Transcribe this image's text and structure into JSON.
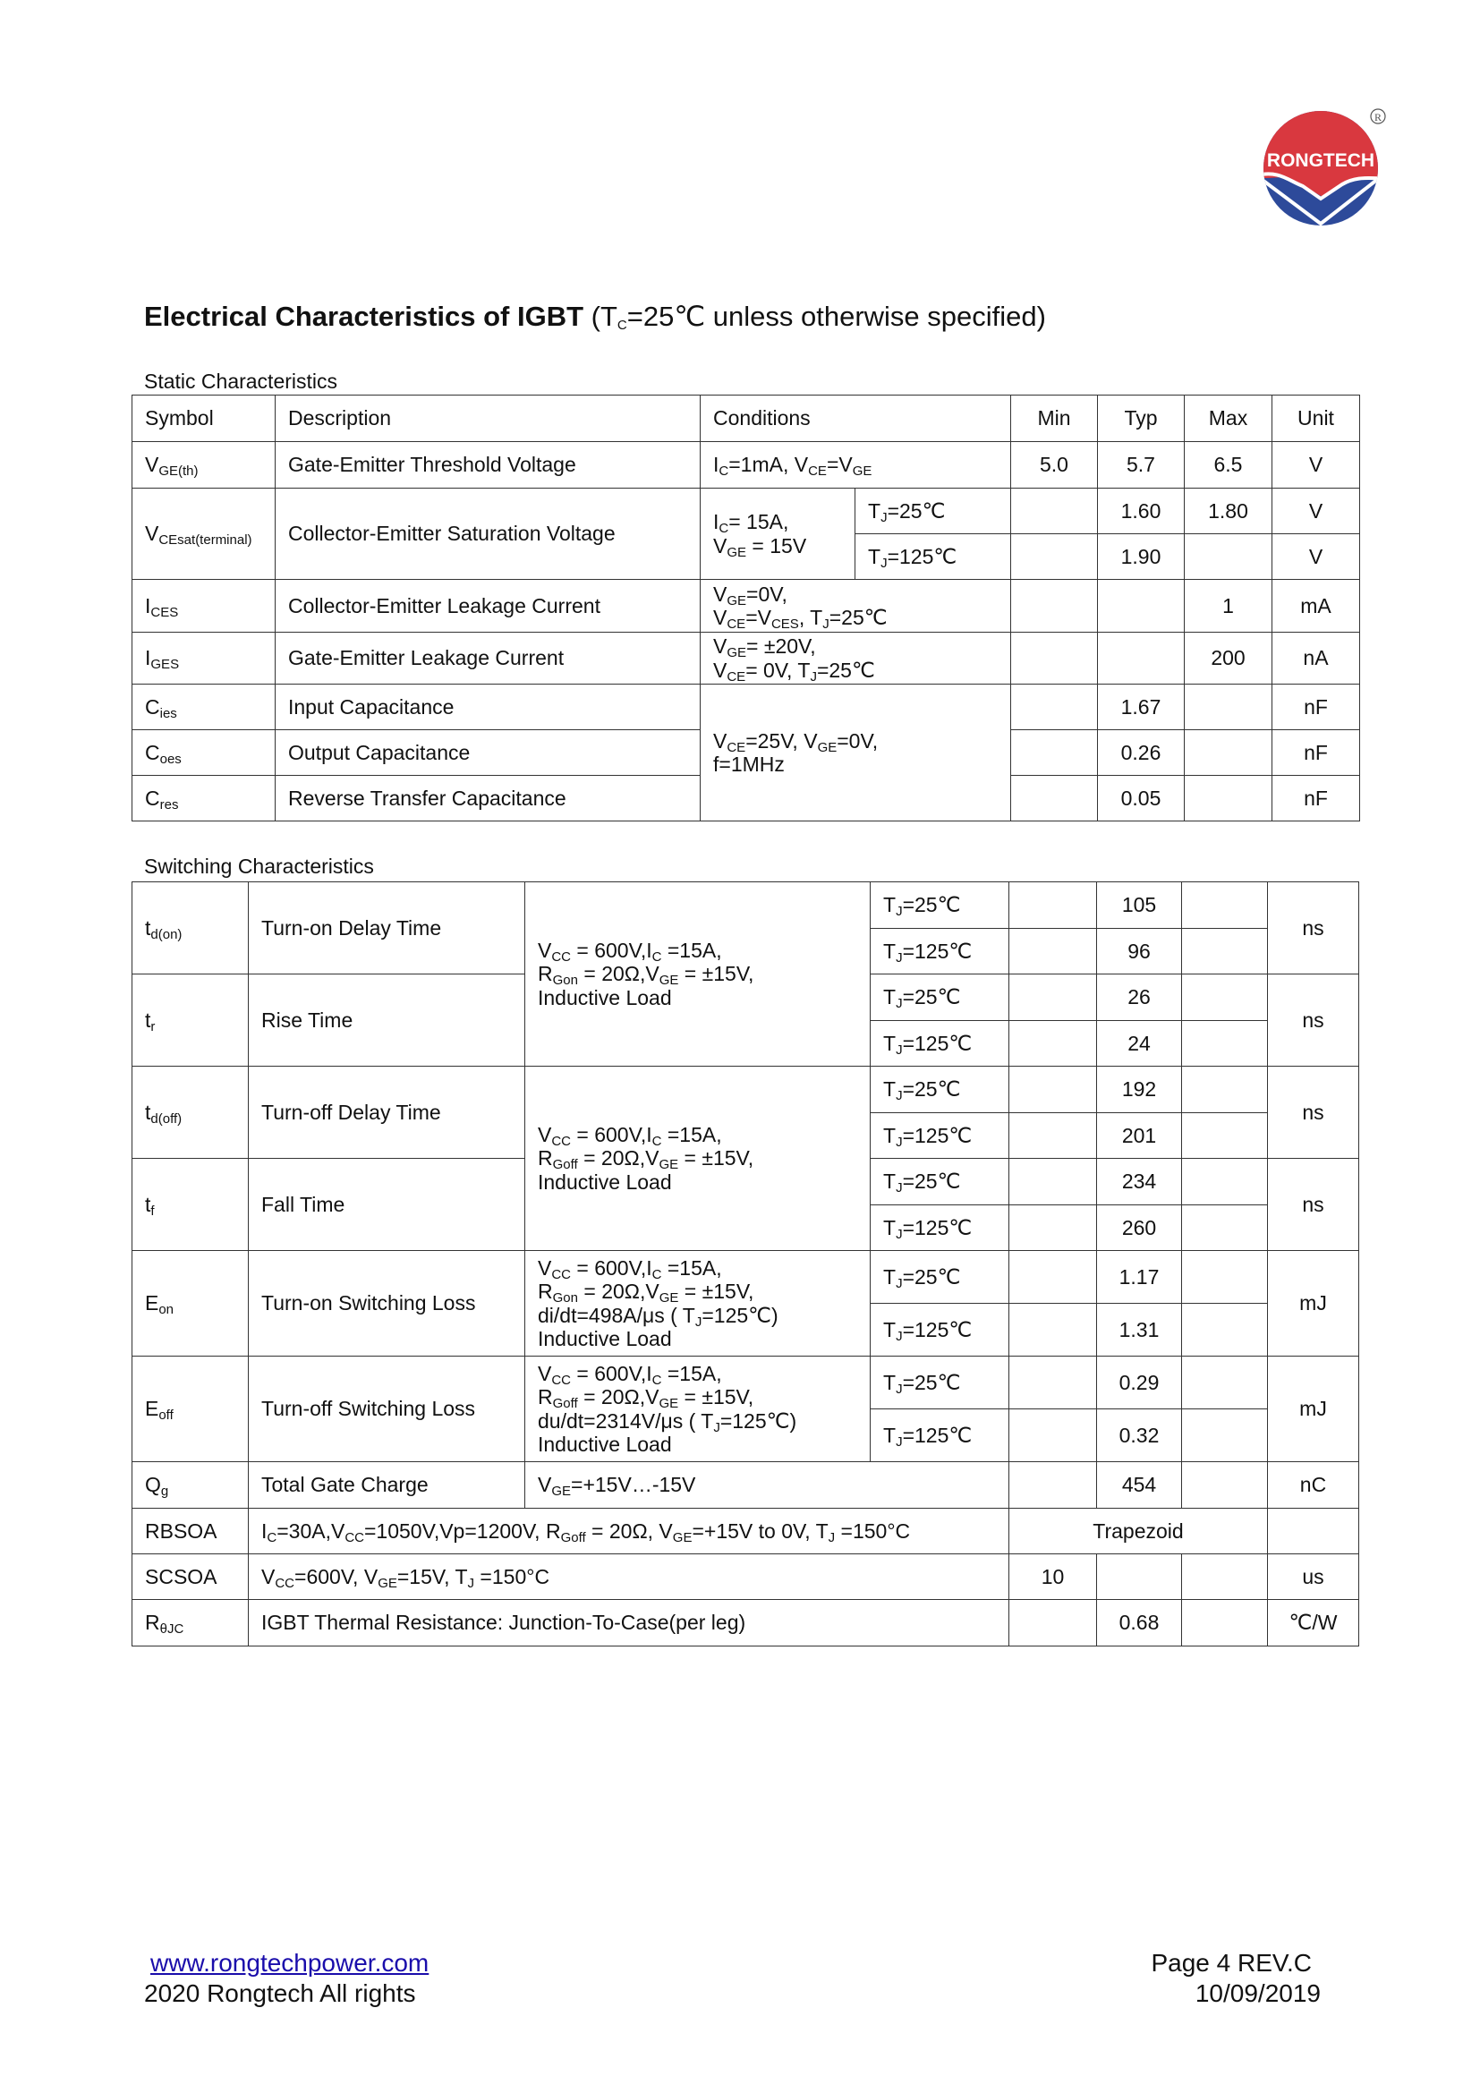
{
  "logo": {
    "text": "RONGTECH",
    "registered": "®",
    "colors": {
      "red": "#d9383f",
      "blue": "#2d4a9a"
    }
  },
  "title": {
    "bold": "Electrical Characteristics of IGBT",
    "rest": [
      [
        "(T",
        {
          "s": "C"
        },
        "=25℃  unless otherwise specified)"
      ]
    ]
  },
  "static": {
    "caption": "Static Characteristics",
    "headers": {
      "symbol": "Symbol",
      "description": "Description",
      "conditions": "Conditions",
      "min": "Min",
      "typ": "Typ",
      "max": "Max",
      "unit": "Unit"
    },
    "rows": [
      {
        "symbol": [
          [
            "V",
            {
              "s": "GE(th)"
            }
          ]
        ],
        "description": "Gate-Emitter Threshold Voltage",
        "conditions": [
          [
            "I",
            {
              "s": "C"
            },
            "=1mA, V",
            {
              "s": "CE"
            },
            "=V",
            {
              "s": "GE"
            }
          ]
        ],
        "min": "5.0",
        "typ": "5.7",
        "max": "6.5",
        "unit": "V"
      },
      {
        "symbol": [
          [
            "V",
            {
              "s": "CEsat(terminal)"
            }
          ]
        ],
        "description": "Collector-Emitter Saturation Voltage",
        "conditions": [
          [
            "I",
            {
              "s": "C"
            },
            "= 15A,"
          ],
          [
            "V",
            {
              "s": "GE"
            },
            " = 15V"
          ]
        ],
        "sub": [
          {
            "tj": [
              [
                "T",
                {
                  "s": "J"
                },
                "=25℃"
              ]
            ],
            "min": "",
            "typ": "1.60",
            "max": "1.80",
            "unit": "V"
          },
          {
            "tj": [
              [
                "T",
                {
                  "s": "J"
                },
                "=125℃"
              ]
            ],
            "min": "",
            "typ": "1.90",
            "max": "",
            "unit": "V"
          }
        ]
      },
      {
        "symbol": [
          [
            "I",
            {
              "s": "CES"
            }
          ]
        ],
        "description": "Collector-Emitter Leakage Current",
        "conditions": [
          [
            "V",
            {
              "s": "GE"
            },
            "=0V,"
          ],
          [
            "V",
            {
              "s": "CE"
            },
            "=V",
            {
              "s": "CES"
            },
            ", T",
            {
              "s": "J"
            },
            "=25℃"
          ]
        ],
        "min": "",
        "typ": "",
        "max": "1",
        "unit": "mA"
      },
      {
        "symbol": [
          [
            "I",
            {
              "s": "GES"
            }
          ]
        ],
        "description": "Gate-Emitter Leakage Current",
        "conditions": [
          [
            "V",
            {
              "s": "GE"
            },
            "= ±20V,"
          ],
          [
            "V",
            {
              "s": "CE"
            },
            "= 0V, T",
            {
              "s": "J"
            },
            "=25℃"
          ]
        ],
        "min": "",
        "typ": "",
        "max": "200",
        "unit": "nA"
      },
      {
        "symbol": [
          [
            "C",
            {
              "s": "ies"
            }
          ]
        ],
        "description": "Input Capacitance",
        "min": "",
        "typ": "1.67",
        "max": "",
        "unit": "nF"
      },
      {
        "symbol": [
          [
            "C",
            {
              "s": "oes"
            }
          ]
        ],
        "description": "Output Capacitance",
        "min": "",
        "typ": "0.26",
        "max": "",
        "unit": "nF"
      },
      {
        "symbol": [
          [
            "C",
            {
              "s": "res"
            }
          ]
        ],
        "description": "Reverse Transfer Capacitance",
        "min": "",
        "typ": "0.05",
        "max": "",
        "unit": "nF"
      }
    ],
    "cap_conditions": [
      [
        "V",
        {
          "s": "CE"
        },
        "=25V, V",
        {
          "s": "GE"
        },
        "=0V,"
      ],
      [
        "f=1MHz"
      ]
    ]
  },
  "switching": {
    "caption": "Switching Characteristics",
    "tj25": [
      [
        "T",
        {
          "s": "J"
        },
        "=25℃"
      ]
    ],
    "tj125": [
      [
        "T",
        {
          "s": "J"
        },
        "=125℃"
      ]
    ],
    "on_conditions": [
      [
        "V",
        {
          "s": "CC"
        },
        " = 600V,I",
        {
          "s": "C"
        },
        " =15A,"
      ],
      [
        "R",
        {
          "s": "Gon"
        },
        " = 20Ω,V",
        {
          "s": "GE"
        },
        " = ±15V,"
      ],
      [
        "Inductive Load"
      ]
    ],
    "off_conditions": [
      [
        "V",
        {
          "s": "CC"
        },
        " = 600V,I",
        {
          "s": "C"
        },
        " =15A,"
      ],
      [
        "R",
        {
          "s": "Goff"
        },
        " = 20Ω,V",
        {
          "s": "GE"
        },
        " = ±15V,"
      ],
      [
        "Inductive Load"
      ]
    ],
    "eon_conditions": [
      [
        "V",
        {
          "s": "CC"
        },
        " = 600V,I",
        {
          "s": "C"
        },
        " =15A,"
      ],
      [
        "R",
        {
          "s": "Gon"
        },
        " = 20Ω,V",
        {
          "s": "GE"
        },
        " = ±15V,"
      ],
      [
        "di/dt=498A/μs ( T",
        {
          "s": "J"
        },
        "=125℃)"
      ],
      [
        "Inductive Load"
      ]
    ],
    "eoff_conditions": [
      [
        "V",
        {
          "s": "CC"
        },
        " = 600V,I",
        {
          "s": "C"
        },
        " =15A,"
      ],
      [
        "R",
        {
          "s": "Goff"
        },
        " = 20Ω,V",
        {
          "s": "GE"
        },
        " = ±15V,"
      ],
      [
        "du/dt=2314V/μs ( T",
        {
          "s": "J"
        },
        "=125℃)"
      ],
      [
        "Inductive Load"
      ]
    ],
    "rows": [
      {
        "symbol": [
          [
            "t",
            {
              "s": "d(on)"
            }
          ]
        ],
        "description": "Turn-on Delay Time",
        "typ25": "105",
        "typ125": "96",
        "unit": "ns"
      },
      {
        "symbol": [
          [
            "t",
            {
              "s": "r"
            }
          ]
        ],
        "description": "Rise Time",
        "typ25": "26",
        "typ125": "24",
        "unit": "ns"
      },
      {
        "symbol": [
          [
            "t",
            {
              "s": "d(off)"
            }
          ]
        ],
        "description": "Turn-off Delay Time",
        "typ25": "192",
        "typ125": "201",
        "unit": "ns"
      },
      {
        "symbol": [
          [
            "t",
            {
              "s": "f"
            }
          ]
        ],
        "description": "Fall Time",
        "typ25": "234",
        "typ125": "260",
        "unit": "ns"
      },
      {
        "symbol": [
          [
            "E",
            {
              "s": "on"
            }
          ]
        ],
        "description": "Turn-on Switching Loss",
        "typ25": "1.17",
        "typ125": "1.31",
        "unit": "mJ"
      },
      {
        "symbol": [
          [
            "E",
            {
              "s": "off"
            }
          ]
        ],
        "description": "Turn-off Switching Loss",
        "typ25": "0.29",
        "typ125": "0.32",
        "unit": "mJ"
      }
    ],
    "qg": {
      "symbol": [
        [
          "Q",
          {
            "s": "g"
          }
        ]
      ],
      "description": "Total Gate Charge",
      "conditions": [
        [
          "V",
          {
            "s": "GE"
          },
          "=+15V…-15V"
        ]
      ],
      "typ": "454",
      "unit": "nC"
    },
    "rbsoa": {
      "symbol": "RBSOA",
      "conditions": [
        [
          "I",
          {
            "s": "C"
          },
          "=30A,V",
          {
            "s": "CC"
          },
          "=1050V,Vp=1200V, R",
          {
            "s": "Goff"
          },
          " = 20Ω, V",
          {
            "s": "GE"
          },
          "=+15V to 0V, T",
          {
            "s": "J"
          },
          " =150°C"
        ]
      ],
      "value": "Trapezoid",
      "unit": ""
    },
    "scsoa": {
      "symbol": "SCSOA",
      "conditions": [
        [
          "V",
          {
            "s": "CC"
          },
          "=600V, V",
          {
            "s": "GE"
          },
          "=15V, T",
          {
            "s": "J"
          },
          " =150°C"
        ]
      ],
      "min": "10",
      "unit": "us"
    },
    "rth": {
      "symbol": [
        [
          "R",
          {
            "s": "θJC"
          }
        ]
      ],
      "conditions": "IGBT Thermal Resistance: Junction-To-Case(per leg)",
      "typ": "0.68",
      "unit": "℃/W"
    }
  },
  "footer": {
    "link": "www.rongtechpower.com",
    "copyright": "2020 Rongtech All rights",
    "page": "Page 4 REV.C",
    "date": "10/09/2019"
  }
}
